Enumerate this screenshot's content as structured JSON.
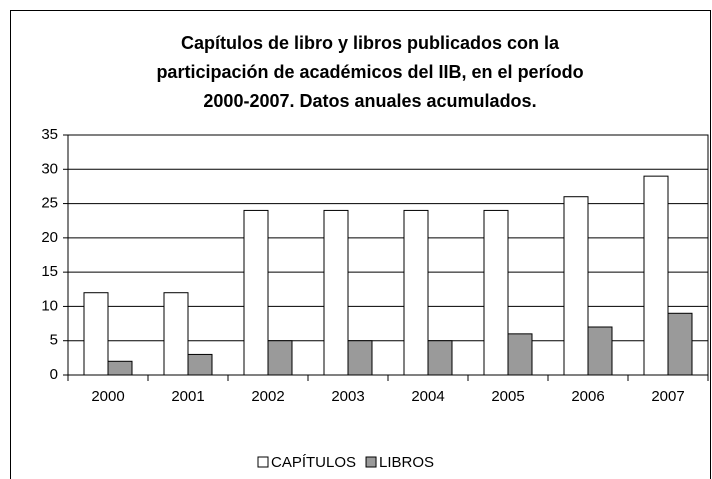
{
  "chart_data": {
    "type": "bar",
    "title": [
      "Capítulos de libro y libros publicados con la",
      "participación de académicos del IIB, en el período",
      "2000-2007. Datos anuales acumulados."
    ],
    "categories": [
      "2000",
      "2001",
      "2002",
      "2003",
      "2004",
      "2005",
      "2006",
      "2007"
    ],
    "series": [
      {
        "name": "CAPÍTULOS",
        "color": "#ffffff",
        "values": [
          12,
          12,
          24,
          24,
          24,
          24,
          26,
          29
        ]
      },
      {
        "name": "LIBROS",
        "color": "#9a9a9a",
        "values": [
          2,
          3,
          5,
          5,
          5,
          6,
          7,
          9
        ]
      }
    ],
    "ylim": [
      0,
      35
    ],
    "yticks": [
      0,
      5,
      10,
      15,
      20,
      25,
      30,
      35
    ],
    "grid": true,
    "legend": "bottom"
  }
}
